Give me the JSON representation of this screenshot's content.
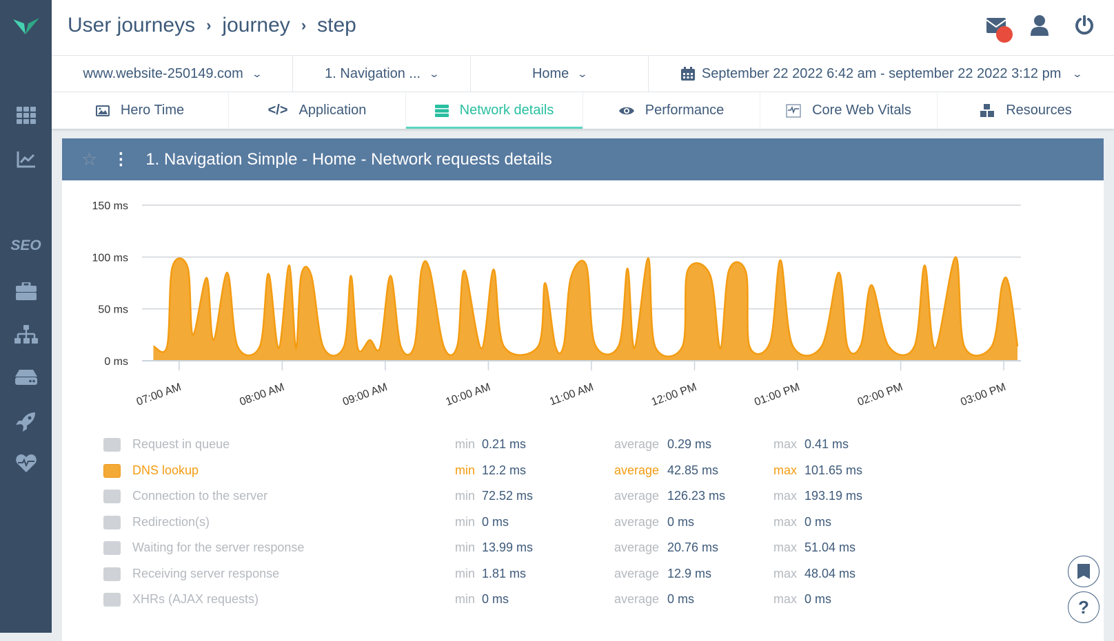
{
  "breadcrumb": [
    "User journeys",
    "journey",
    "step"
  ],
  "filters": {
    "site": "www.website-250149.com",
    "journey": "1. Navigation ...",
    "step": "Home",
    "date_range": "September 22 2022 6:42 am - september 22 2022 3:12 pm"
  },
  "tabs": [
    {
      "label": "Hero Time",
      "icon": "image-icon"
    },
    {
      "label": "Application",
      "icon": "code-icon"
    },
    {
      "label": "Network details",
      "icon": "server-icon",
      "active": true
    },
    {
      "label": "Performance",
      "icon": "eye-icon"
    },
    {
      "label": "Core Web Vitals",
      "icon": "vitals-icon"
    },
    {
      "label": "Resources",
      "icon": "cubes-icon"
    }
  ],
  "sidebar": {
    "seo_label": "SEO"
  },
  "panel": {
    "title": "1. Navigation Simple - Home - Network requests details"
  },
  "colors": {
    "accent": "#28bfa0",
    "series": "#f4aa36",
    "header": "#587ba0",
    "sidebar": "#394d65",
    "notification": "#e74c3c"
  },
  "chart_data": {
    "type": "area",
    "y_ticks": [
      "0 ms",
      "50 ms",
      "100 ms",
      "150 ms"
    ],
    "ylim": [
      0,
      150
    ],
    "x_ticks": [
      "07:00 AM",
      "08:00 AM",
      "09:00 AM",
      "10:00 AM",
      "11:00 AM",
      "12:00 PM",
      "01:00 PM",
      "02:00 PM",
      "03:00 PM"
    ],
    "xlim": [
      "06:40",
      "15:10"
    ],
    "grid": true,
    "series": [
      {
        "name": "DNS lookup",
        "points": [
          [
            "06:45",
            14
          ],
          [
            "06:53",
            14
          ],
          [
            "06:56",
            90
          ],
          [
            "07:05",
            90
          ],
          [
            "07:08",
            25
          ],
          [
            "07:16",
            80
          ],
          [
            "07:20",
            20
          ],
          [
            "07:28",
            85
          ],
          [
            "07:34",
            14
          ],
          [
            "07:47",
            14
          ],
          [
            "07:52",
            84
          ],
          [
            "07:58",
            12
          ],
          [
            "08:04",
            92
          ],
          [
            "08:08",
            12
          ],
          [
            "08:11",
            82
          ],
          [
            "08:17",
            82
          ],
          [
            "08:24",
            13
          ],
          [
            "08:36",
            14
          ],
          [
            "08:40",
            82
          ],
          [
            "08:44",
            12
          ],
          [
            "08:51",
            20
          ],
          [
            "08:57",
            13
          ],
          [
            "09:03",
            82
          ],
          [
            "09:09",
            14
          ],
          [
            "09:17",
            15
          ],
          [
            "09:21",
            87
          ],
          [
            "09:26",
            87
          ],
          [
            "09:34",
            14
          ],
          [
            "09:42",
            15
          ],
          [
            "09:46",
            87
          ],
          [
            "09:56",
            12
          ],
          [
            "10:03",
            88
          ],
          [
            "10:09",
            14
          ],
          [
            "10:29",
            14
          ],
          [
            "10:33",
            75
          ],
          [
            "10:39",
            14
          ],
          [
            "10:44",
            16
          ],
          [
            "10:48",
            80
          ],
          [
            "10:57",
            92
          ],
          [
            "11:02",
            16
          ],
          [
            "11:16",
            15
          ],
          [
            "11:21",
            89
          ],
          [
            "11:25",
            12
          ],
          [
            "11:33",
            99
          ],
          [
            "11:37",
            14
          ],
          [
            "11:53",
            14
          ],
          [
            "11:56",
            87
          ],
          [
            "12:09",
            83
          ],
          [
            "12:15",
            12
          ],
          [
            "12:20",
            87
          ],
          [
            "12:30",
            85
          ],
          [
            "12:32",
            14
          ],
          [
            "12:44",
            18
          ],
          [
            "12:50",
            97
          ],
          [
            "12:57",
            15
          ],
          [
            "13:14",
            14
          ],
          [
            "13:24",
            85
          ],
          [
            "13:29",
            14
          ],
          [
            "13:37",
            16
          ],
          [
            "13:43",
            73
          ],
          [
            "13:53",
            14
          ],
          [
            "14:08",
            14
          ],
          [
            "14:14",
            92
          ],
          [
            "14:20",
            12
          ],
          [
            "14:32",
            100
          ],
          [
            "14:37",
            14
          ],
          [
            "14:53",
            14
          ],
          [
            "14:59",
            73
          ],
          [
            "15:03",
            73
          ],
          [
            "15:08",
            14
          ]
        ]
      }
    ]
  },
  "legend": [
    {
      "label": "Request in queue",
      "min": "0.21 ms",
      "average": "0.29 ms",
      "max": "0.41 ms"
    },
    {
      "label": "DNS lookup",
      "min": "12.2 ms",
      "average": "42.85 ms",
      "max": "101.65 ms",
      "active": true
    },
    {
      "label": "Connection to the server",
      "min": "72.52 ms",
      "average": "126.23 ms",
      "max": "193.19 ms"
    },
    {
      "label": "Redirection(s)",
      "min": "0 ms",
      "average": "0 ms",
      "max": "0 ms"
    },
    {
      "label": "Waiting for the server response",
      "min": "13.99 ms",
      "average": "20.76 ms",
      "max": "51.04 ms"
    },
    {
      "label": "Receiving server response",
      "min": "1.81 ms",
      "average": "12.9 ms",
      "max": "48.04 ms"
    },
    {
      "label": "XHRs (AJAX requests)",
      "min": "0 ms",
      "average": "0 ms",
      "max": "0 ms"
    }
  ],
  "stat_labels": {
    "min": "min",
    "average": "average",
    "max": "max"
  },
  "help": {
    "label": "?"
  }
}
